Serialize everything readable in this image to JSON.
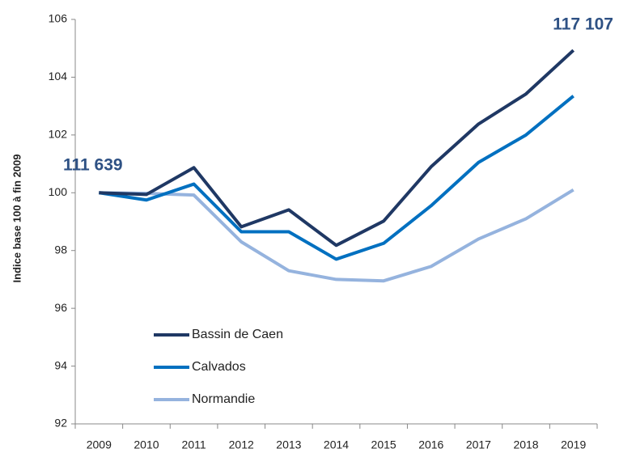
{
  "chart_data": {
    "type": "line",
    "y_label": "Indice base  100 à fin 2009",
    "categories": [
      "2009",
      "2010",
      "2011",
      "2012",
      "2013",
      "2014",
      "2015",
      "2016",
      "2017",
      "2018",
      "2019"
    ],
    "series": [
      {
        "name": "Bassin de Caen",
        "color": "#1f3864",
        "values": [
          100,
          99.94,
          100.87,
          98.82,
          99.41,
          98.18,
          99.02,
          100.9,
          102.38,
          103.42,
          104.93
        ]
      },
      {
        "name": "Calvados",
        "color": "#0070c0",
        "values": [
          100,
          99.75,
          100.3,
          98.65,
          98.65,
          97.7,
          98.25,
          99.55,
          101.05,
          102,
          103.35
        ]
      },
      {
        "name": "Normandie",
        "color": "#95b3de",
        "values": [
          100,
          99.98,
          99.92,
          98.3,
          97.3,
          97,
          96.95,
          97.45,
          98.4,
          99.1,
          100.1
        ]
      }
    ],
    "annotations": [
      "111 639",
      "117 107"
    ],
    "ylim": [
      92,
      106
    ],
    "yticks": [
      92,
      94,
      96,
      98,
      100,
      102,
      104,
      106
    ],
    "grid": false
  }
}
